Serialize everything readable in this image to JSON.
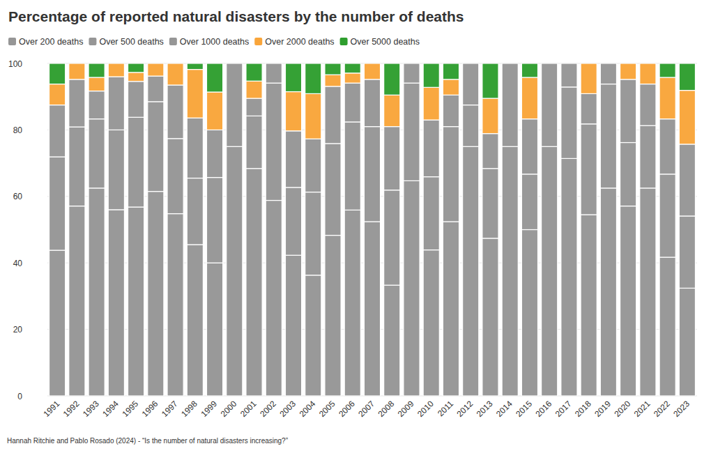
{
  "chart_data": {
    "type": "bar",
    "stacked": true,
    "grid": true,
    "title": "Percentage of reported natural disasters by the number of deaths",
    "caption": "Hannah Ritchie and Pablo Rosado (2024) - “Is the number of natural disasters increasing?”",
    "legend": "top-left",
    "categories": [
      "1991",
      "1992",
      "1993",
      "1994",
      "1995",
      "1996",
      "1997",
      "1998",
      "1999",
      "2000",
      "2001",
      "2002",
      "2003",
      "2004",
      "2005",
      "2006",
      "2007",
      "2008",
      "2009",
      "2010",
      "2011",
      "2012",
      "2013",
      "2014",
      "2015",
      "2016",
      "2017",
      "2018",
      "2019",
      "2020",
      "2021",
      "2022",
      "2023"
    ],
    "ylim": [
      0,
      100
    ],
    "yticks": [
      0,
      20,
      40,
      60,
      80,
      100
    ],
    "series": [
      {
        "name": "Over 200 deaths",
        "color": "#969696",
        "values": [
          43.8,
          57.1,
          62.5,
          56,
          56.8,
          61.5,
          54.8,
          45.5,
          40,
          75,
          68.4,
          58.8,
          42.3,
          36.3,
          48.3,
          55.9,
          52.4,
          33.3,
          64.7,
          43.9,
          52.4,
          75,
          47.4,
          75,
          50,
          75,
          71.4,
          54.5,
          62.5,
          57.1,
          62.5,
          41.7,
          32.4
        ]
      },
      {
        "name": "Over 500 deaths",
        "color": "#969696",
        "values": [
          28.1,
          23.8,
          20.8,
          24,
          27,
          27,
          22.6,
          20,
          25.7,
          25,
          15.8,
          35.3,
          20.4,
          25,
          27.6,
          26.5,
          28.6,
          28.6,
          29.4,
          22,
          28.6,
          12.5,
          21,
          25,
          16.7,
          25,
          21.5,
          27.3,
          31.3,
          19.1,
          18.8,
          25,
          21.7
        ]
      },
      {
        "name": "Over 1000 deaths",
        "color": "#969696",
        "values": [
          15.6,
          14.3,
          8.4,
          16,
          10.8,
          7.7,
          16.1,
          18.1,
          14.3,
          0,
          5.3,
          5.9,
          17,
          16,
          17.2,
          11.7,
          14.2,
          19.1,
          5.9,
          17.1,
          9.5,
          12.5,
          10.5,
          0,
          16.6,
          0,
          7.1,
          9.1,
          6.2,
          19,
          12.5,
          16.6,
          21.6
        ]
      },
      {
        "name": "Over 2000 deaths",
        "color": "#f9a53a",
        "values": [
          6.3,
          4.8,
          4.1,
          4,
          2.7,
          3.8,
          6.5,
          14.6,
          11.4,
          0,
          5.2,
          0,
          11.8,
          13.6,
          3.5,
          3,
          4.8,
          9.5,
          0,
          9.8,
          4.7,
          0,
          10.6,
          0,
          12.5,
          0,
          0,
          9.1,
          0,
          4.8,
          6.2,
          12.5,
          16.2
        ]
      },
      {
        "name": "Over 5000 deaths",
        "color": "#2e9e2e",
        "values": [
          6.2,
          0,
          4.2,
          0,
          2.7,
          0,
          0,
          1.8,
          8.6,
          0,
          5.3,
          0,
          8.5,
          9.1,
          3.4,
          2.9,
          0,
          9.5,
          0,
          7.2,
          4.8,
          0,
          10.5,
          0,
          4.2,
          0,
          0,
          0,
          0,
          0,
          0,
          4.2,
          8.1
        ]
      }
    ]
  }
}
